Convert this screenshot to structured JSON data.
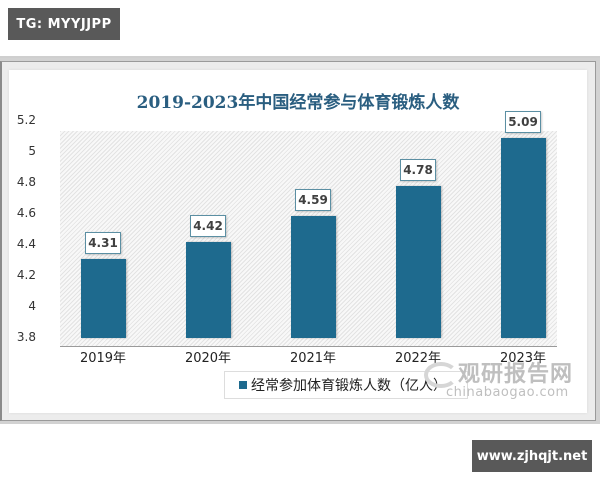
{
  "watermarks": {
    "top_tag": "TG: MYYJJPP",
    "bottom_tag": "www.zjhqjt.net",
    "source_cn": "观研报告网",
    "source_en": "chinabaogao.com"
  },
  "chart_data": {
    "type": "bar",
    "title": "2019-2023年中国经常参与体育锻炼人数",
    "categories": [
      "2019年",
      "2020年",
      "2021年",
      "2022年",
      "2023年"
    ],
    "series": [
      {
        "name": "经常参加体育锻炼人数（亿人）",
        "values": [
          4.31,
          4.42,
          4.59,
          4.78,
          5.09
        ],
        "color": "#1e6a8e"
      }
    ],
    "value_labels": [
      "4.31",
      "4.42",
      "4.59",
      "4.78",
      "5.09"
    ],
    "yticks": [
      "5.2",
      "5",
      "4.8",
      "4.6",
      "4.4",
      "4.2",
      "4",
      "3.8"
    ],
    "ylim": [
      3.8,
      5.2
    ],
    "xlabel": "",
    "ylabel": "",
    "legend_position": "bottom",
    "grid": false
  }
}
